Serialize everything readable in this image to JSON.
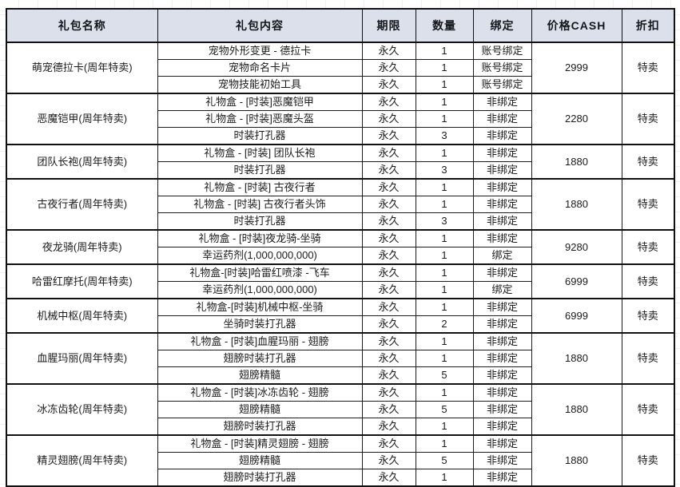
{
  "table": {
    "headers": [
      "礼包名称",
      "礼包内容",
      "期限",
      "数量",
      "绑定",
      "价格CASH",
      "折扣"
    ],
    "groups": [
      {
        "name": "萌宠德拉卡(周年特卖)",
        "price": "2999",
        "discount": "特卖",
        "items": [
          {
            "content": "宠物外形变更 - 德拉卡",
            "duration": "永久",
            "qty": "1",
            "bind": "账号绑定"
          },
          {
            "content": "宠物命名卡片",
            "duration": "永久",
            "qty": "1",
            "bind": "账号绑定"
          },
          {
            "content": "宠物技能初始工具",
            "duration": "永久",
            "qty": "1",
            "bind": "账号绑定"
          }
        ]
      },
      {
        "name": "恶魔铠甲(周年特卖)",
        "price": "2280",
        "discount": "特卖",
        "items": [
          {
            "content": "礼物盒 - [时装]恶魔铠甲",
            "duration": "永久",
            "qty": "1",
            "bind": "非绑定"
          },
          {
            "content": "礼物盒 - [时装]恶魔头盔",
            "duration": "永久",
            "qty": "1",
            "bind": "非绑定"
          },
          {
            "content": "时装打孔器",
            "duration": "永久",
            "qty": "3",
            "bind": "非绑定"
          }
        ]
      },
      {
        "name": "团队长袍(周年特卖)",
        "price": "1880",
        "discount": "特卖",
        "items": [
          {
            "content": "礼物盒 - [时装] 团队长袍",
            "duration": "永久",
            "qty": "1",
            "bind": "非绑定"
          },
          {
            "content": "时装打孔器",
            "duration": "永久",
            "qty": "3",
            "bind": "非绑定"
          }
        ]
      },
      {
        "name": "古夜行者(周年特卖)",
        "price": "1880",
        "discount": "特卖",
        "items": [
          {
            "content": "礼物盒 - [时装] 古夜行者",
            "duration": "永久",
            "qty": "1",
            "bind": "非绑定"
          },
          {
            "content": "礼物盒 - [时装] 古夜行者头饰",
            "duration": "永久",
            "qty": "1",
            "bind": "非绑定"
          },
          {
            "content": "时装打孔器",
            "duration": "永久",
            "qty": "3",
            "bind": "非绑定"
          }
        ]
      },
      {
        "name": "夜龙骑(周年特卖)",
        "price": "9280",
        "discount": "特卖",
        "items": [
          {
            "content": "礼物盒 - [时装]夜龙骑-坐骑",
            "duration": "永久",
            "qty": "1",
            "bind": "非绑定"
          },
          {
            "content": "幸运药剂(1,000,000,000)",
            "duration": "永久",
            "qty": "1",
            "bind": "绑定"
          }
        ]
      },
      {
        "name": "哈雷红摩托(周年特卖)",
        "price": "6999",
        "discount": "特卖",
        "items": [
          {
            "content": "礼物盒-[时装]哈雷红喷漆 -飞车",
            "duration": "永久",
            "qty": "1",
            "bind": "非绑定"
          },
          {
            "content": "幸运药剂(1,000,000,000)",
            "duration": "永久",
            "qty": "1",
            "bind": "绑定"
          }
        ]
      },
      {
        "name": "机械中枢(周年特卖)",
        "price": "6999",
        "discount": "特卖",
        "items": [
          {
            "content": "礼物盒-[时装]机械中枢-坐骑",
            "duration": "永久",
            "qty": "1",
            "bind": "非绑定"
          },
          {
            "content": "坐骑时装打孔器",
            "duration": "永久",
            "qty": "2",
            "bind": "非绑定"
          }
        ]
      },
      {
        "name": "血腥玛丽(周年特卖)",
        "price": "1880",
        "discount": "特卖",
        "items": [
          {
            "content": "礼物盒 - [时装]血腥玛丽 - 翅膀",
            "duration": "永久",
            "qty": "1",
            "bind": "非绑定"
          },
          {
            "content": "翅膀时装打孔器",
            "duration": "永久",
            "qty": "1",
            "bind": "非绑定"
          },
          {
            "content": "翅膀精髓",
            "duration": "永久",
            "qty": "5",
            "bind": "非绑定"
          }
        ]
      },
      {
        "name": "冰冻齿轮(周年特卖)",
        "price": "1880",
        "discount": "特卖",
        "items": [
          {
            "content": "礼物盒 - [时装]冰冻齿轮 - 翅膀",
            "duration": "永久",
            "qty": "1",
            "bind": "非绑定"
          },
          {
            "content": "翅膀精髓",
            "duration": "永久",
            "qty": "5",
            "bind": "非绑定"
          },
          {
            "content": "翅膀时装打孔器",
            "duration": "永久",
            "qty": "1",
            "bind": "非绑定"
          }
        ]
      },
      {
        "name": "精灵翅膀(周年特卖)",
        "price": "1880",
        "discount": "特卖",
        "items": [
          {
            "content": "礼物盒 - [时装]精灵翅膀 - 翅膀",
            "duration": "永久",
            "qty": "1",
            "bind": "非绑定"
          },
          {
            "content": "翅膀精髓",
            "duration": "永久",
            "qty": "5",
            "bind": "非绑定"
          },
          {
            "content": "翅膀时装打孔器",
            "duration": "永久",
            "qty": "1",
            "bind": "非绑定"
          }
        ]
      }
    ]
  },
  "colors": {
    "header_bg": "#dce0eb",
    "border": "#111111",
    "text": "#1b1b1b"
  }
}
